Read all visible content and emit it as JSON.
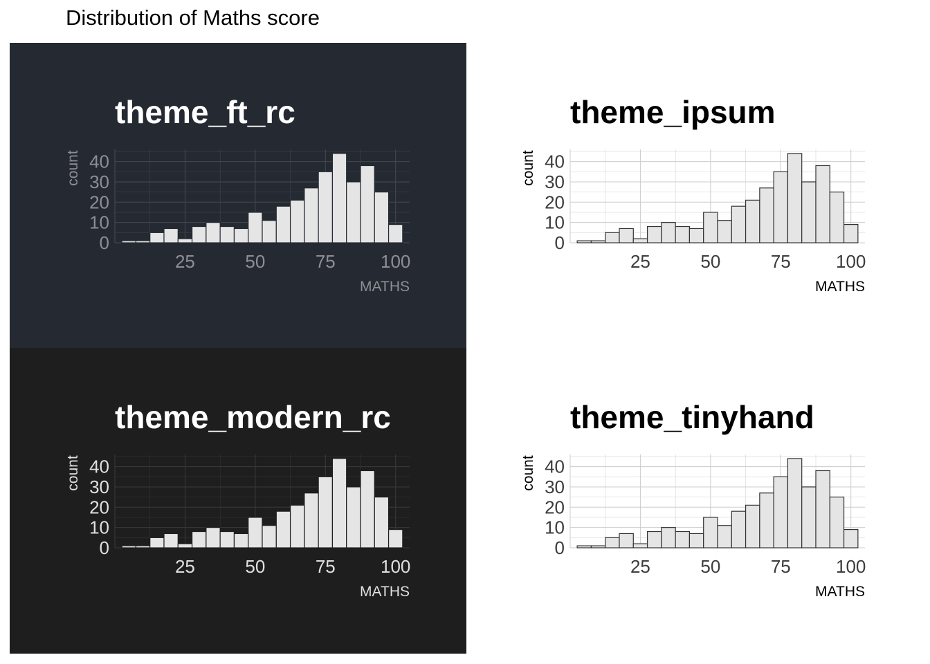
{
  "title": "Distribution of Maths score",
  "chart_data": [
    {
      "type": "bar",
      "title": "theme_ft_rc",
      "xlabel": "MATHS",
      "ylabel": "count",
      "theme": {
        "background": "#252A32",
        "text": "#8E8E93",
        "title": "#FFFFFF",
        "grid": "#464950",
        "bar_fill": "#E5E5E5",
        "bar_border": "#252A32"
      },
      "bins_start": 5,
      "bin_width": 5,
      "values": [
        1,
        1,
        5,
        7,
        2,
        8,
        10,
        8,
        7,
        15,
        11,
        18,
        21,
        27,
        35,
        44,
        30,
        38,
        25,
        9
      ],
      "xlim": [
        0,
        105
      ],
      "ylim": [
        0,
        46
      ],
      "xticks": [
        25,
        50,
        75,
        100
      ],
      "yticks": [
        0,
        10,
        20,
        30,
        40
      ],
      "grid": true
    },
    {
      "type": "bar",
      "title": "theme_ipsum",
      "xlabel": "MATHS",
      "ylabel": "count",
      "theme": {
        "background": "#FFFFFF",
        "text": "#3C3C3C",
        "title": "#000000",
        "grid": "#CCCCCC",
        "bar_fill": "#E5E5E5",
        "bar_border": "#333333"
      },
      "bins_start": 5,
      "bin_width": 5,
      "values": [
        1,
        1,
        5,
        7,
        2,
        8,
        10,
        8,
        7,
        15,
        11,
        18,
        21,
        27,
        35,
        44,
        30,
        38,
        25,
        9
      ],
      "xlim": [
        0,
        105
      ],
      "ylim": [
        0,
        46
      ],
      "xticks": [
        25,
        50,
        75,
        100
      ],
      "yticks": [
        0,
        10,
        20,
        30,
        40
      ],
      "grid": true
    },
    {
      "type": "bar",
      "title": "theme_modern_rc",
      "xlabel": "MATHS",
      "ylabel": "count",
      "theme": {
        "background": "#1E1E1E",
        "text": "#E0E0E0",
        "title": "#FFFFFF",
        "grid": "#3A3A3A",
        "bar_fill": "#E5E5E5",
        "bar_border": "#1E1E1E"
      },
      "bins_start": 5,
      "bin_width": 5,
      "values": [
        1,
        1,
        5,
        7,
        2,
        8,
        10,
        8,
        7,
        15,
        11,
        18,
        21,
        27,
        35,
        44,
        30,
        38,
        25,
        9
      ],
      "xlim": [
        0,
        105
      ],
      "ylim": [
        0,
        46
      ],
      "xticks": [
        25,
        50,
        75,
        100
      ],
      "yticks": [
        0,
        10,
        20,
        30,
        40
      ],
      "grid": true
    },
    {
      "type": "bar",
      "title": "theme_tinyhand",
      "xlabel": "MATHS",
      "ylabel": "count",
      "theme": {
        "background": "#FFFFFF",
        "text": "#3C3C3C",
        "title": "#000000",
        "grid": "#CCCCCC",
        "bar_fill": "#E5E5E5",
        "bar_border": "#333333"
      },
      "bins_start": 5,
      "bin_width": 5,
      "values": [
        1,
        1,
        5,
        7,
        2,
        8,
        10,
        8,
        7,
        15,
        11,
        18,
        21,
        27,
        35,
        44,
        30,
        38,
        25,
        9
      ],
      "xlim": [
        0,
        105
      ],
      "ylim": [
        0,
        46
      ],
      "xticks": [
        25,
        50,
        75,
        100
      ],
      "yticks": [
        0,
        10,
        20,
        30,
        40
      ],
      "grid": true
    }
  ]
}
